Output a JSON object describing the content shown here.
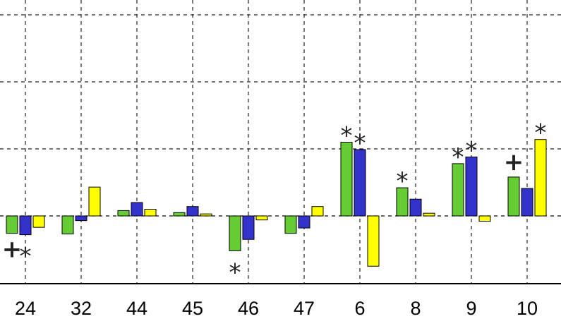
{
  "chart_data": {
    "type": "bar",
    "categories": [
      "24",
      "32",
      "44",
      "45",
      "46",
      "47",
      "6",
      "8",
      "9",
      "10"
    ],
    "series": [
      {
        "color": "#66cc33",
        "values": [
          -0.26,
          -0.27,
          0.08,
          0.05,
          -0.52,
          -0.26,
          1.1,
          0.42,
          0.78,
          0.58
        ]
      },
      {
        "color": "#3333cc",
        "values": [
          -0.28,
          -0.07,
          0.2,
          0.14,
          -0.35,
          -0.18,
          0.99,
          0.25,
          0.88,
          0.41
        ]
      },
      {
        "color": "#ffff00",
        "values": [
          -0.17,
          0.43,
          0.1,
          0.03,
          -0.06,
          0.14,
          -0.75,
          0.04,
          -0.08,
          1.14
        ]
      }
    ],
    "annotations": [
      {
        "category": "24",
        "series": 0,
        "symbol": "+",
        "position": "below"
      },
      {
        "category": "24",
        "series": 1,
        "symbol": "*",
        "position": "below"
      },
      {
        "category": "46",
        "series": 0,
        "symbol": "*",
        "position": "below"
      },
      {
        "category": "6",
        "series": 0,
        "symbol": "*",
        "position": "above"
      },
      {
        "category": "6",
        "series": 1,
        "symbol": "*",
        "position": "above"
      },
      {
        "category": "8",
        "series": 0,
        "symbol": "*",
        "position": "above"
      },
      {
        "category": "9",
        "series": 0,
        "symbol": "*",
        "position": "above"
      },
      {
        "category": "9",
        "series": 1,
        "symbol": "*",
        "position": "above"
      },
      {
        "category": "10",
        "series": 0,
        "symbol": "+",
        "position": "above"
      },
      {
        "category": "10",
        "series": 2,
        "symbol": "*",
        "position": "above"
      }
    ],
    "ylim": [
      -1.0,
      3.15
    ],
    "gridlines_y": [
      0,
      1,
      2,
      3
    ],
    "grid": true,
    "grid_style": "dashed",
    "y_tick_labels_shown": false,
    "title": "",
    "xlabel": "",
    "ylabel": ""
  }
}
